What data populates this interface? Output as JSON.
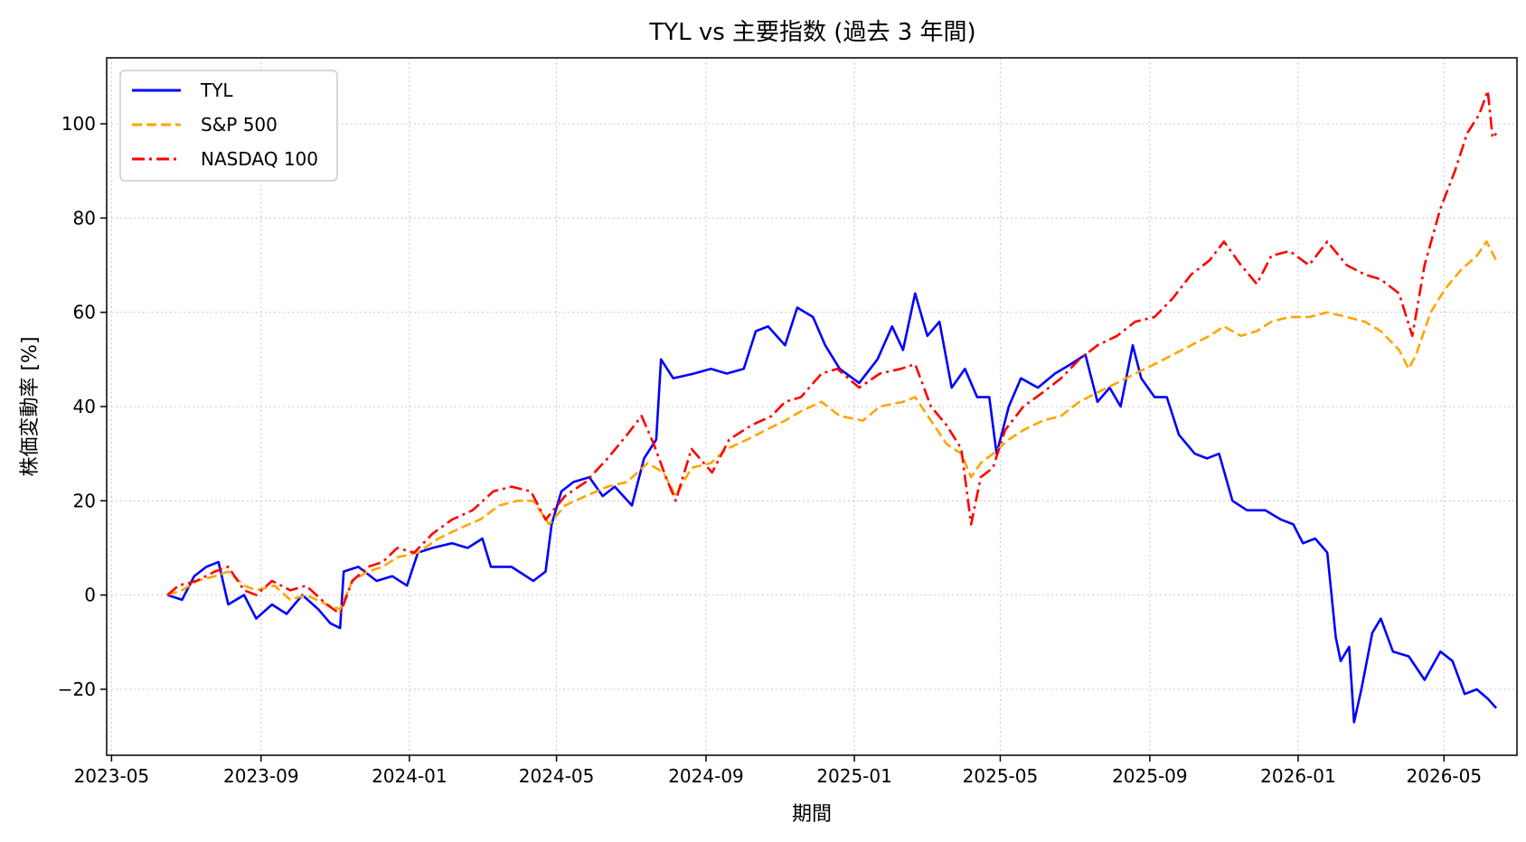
{
  "chart_data": {
    "type": "line",
    "title": "TYL vs 主要指数 (過去 3 年間)",
    "xlabel": "期間",
    "ylabel": "株価変動率 [%]",
    "xlim": [
      "2023-04-27",
      "2026-06-30"
    ],
    "ylim": [
      -34,
      114
    ],
    "x_ticks": [
      "2023-05",
      "2023-09",
      "2024-01",
      "2024-05",
      "2024-09",
      "2025-01",
      "2025-05",
      "2025-09",
      "2026-01",
      "2026-05"
    ],
    "y_ticks": [
      -20,
      0,
      20,
      40,
      60,
      80,
      100
    ],
    "grid": true,
    "legend_position": "top-left",
    "series": [
      {
        "name": "TYL",
        "color": "#0000ff",
        "style": "solid",
        "points": [
          [
            "2023-06-16",
            0
          ],
          [
            "2023-06-28",
            -1
          ],
          [
            "2023-07-08",
            4
          ],
          [
            "2023-07-18",
            6
          ],
          [
            "2023-07-28",
            7
          ],
          [
            "2023-08-05",
            -2
          ],
          [
            "2023-08-18",
            0
          ],
          [
            "2023-08-28",
            -5
          ],
          [
            "2023-09-10",
            -2
          ],
          [
            "2023-09-22",
            -4
          ],
          [
            "2023-10-05",
            0
          ],
          [
            "2023-10-18",
            -3
          ],
          [
            "2023-10-28",
            -6
          ],
          [
            "2023-11-05",
            -7
          ],
          [
            "2023-11-08",
            5
          ],
          [
            "2023-11-20",
            6
          ],
          [
            "2023-12-05",
            3
          ],
          [
            "2023-12-18",
            4
          ],
          [
            "2023-12-30",
            2
          ],
          [
            "2024-01-08",
            9
          ],
          [
            "2024-01-20",
            10
          ],
          [
            "2024-02-05",
            11
          ],
          [
            "2024-02-18",
            10
          ],
          [
            "2024-03-01",
            12
          ],
          [
            "2024-03-08",
            6
          ],
          [
            "2024-03-25",
            6
          ],
          [
            "2024-04-12",
            3
          ],
          [
            "2024-04-22",
            5
          ],
          [
            "2024-04-27",
            15
          ],
          [
            "2024-05-05",
            22
          ],
          [
            "2024-05-15",
            24
          ],
          [
            "2024-05-28",
            25
          ],
          [
            "2024-06-08",
            21
          ],
          [
            "2024-06-18",
            23
          ],
          [
            "2024-07-02",
            19
          ],
          [
            "2024-07-12",
            29
          ],
          [
            "2024-07-22",
            33
          ],
          [
            "2024-07-26",
            50
          ],
          [
            "2024-08-05",
            46
          ],
          [
            "2024-08-22",
            47
          ],
          [
            "2024-09-05",
            48
          ],
          [
            "2024-09-18",
            47
          ],
          [
            "2024-10-02",
            48
          ],
          [
            "2024-10-12",
            56
          ],
          [
            "2024-10-22",
            57
          ],
          [
            "2024-11-05",
            53
          ],
          [
            "2024-11-15",
            61
          ],
          [
            "2024-11-28",
            59
          ],
          [
            "2024-12-08",
            53
          ],
          [
            "2024-12-20",
            48
          ],
          [
            "2025-01-05",
            45
          ],
          [
            "2025-01-20",
            50
          ],
          [
            "2025-02-01",
            57
          ],
          [
            "2025-02-10",
            52
          ],
          [
            "2025-02-20",
            64
          ],
          [
            "2025-03-02",
            55
          ],
          [
            "2025-03-12",
            58
          ],
          [
            "2025-03-22",
            44
          ],
          [
            "2025-04-02",
            48
          ],
          [
            "2025-04-12",
            42
          ],
          [
            "2025-04-22",
            42
          ],
          [
            "2025-04-28",
            30
          ],
          [
            "2025-05-08",
            40
          ],
          [
            "2025-05-18",
            46
          ],
          [
            "2025-06-01",
            44
          ],
          [
            "2025-06-15",
            47
          ],
          [
            "2025-06-28",
            49
          ],
          [
            "2025-07-10",
            51
          ],
          [
            "2025-07-20",
            41
          ],
          [
            "2025-07-30",
            44
          ],
          [
            "2025-08-08",
            40
          ],
          [
            "2025-08-18",
            53
          ],
          [
            "2025-08-25",
            46
          ],
          [
            "2025-09-05",
            42
          ],
          [
            "2025-09-15",
            42
          ],
          [
            "2025-09-25",
            34
          ],
          [
            "2025-10-08",
            30
          ],
          [
            "2025-10-18",
            29
          ],
          [
            "2025-10-28",
            30
          ],
          [
            "2025-11-08",
            20
          ],
          [
            "2025-11-20",
            18
          ],
          [
            "2025-12-05",
            18
          ],
          [
            "2025-12-18",
            16
          ],
          [
            "2025-12-28",
            15
          ],
          [
            "2026-01-05",
            11
          ],
          [
            "2026-01-15",
            12
          ],
          [
            "2026-01-25",
            9
          ],
          [
            "2026-02-01",
            -9
          ],
          [
            "2026-02-05",
            -14
          ],
          [
            "2026-02-12",
            -11
          ],
          [
            "2026-02-16",
            -27
          ],
          [
            "2026-02-22",
            -20
          ],
          [
            "2026-03-03",
            -8
          ],
          [
            "2026-03-10",
            -5
          ],
          [
            "2026-03-20",
            -12
          ],
          [
            "2026-04-02",
            -13
          ],
          [
            "2026-04-15",
            -18
          ],
          [
            "2026-04-28",
            -12
          ],
          [
            "2026-05-08",
            -14
          ],
          [
            "2026-05-18",
            -21
          ],
          [
            "2026-05-28",
            -20
          ],
          [
            "2026-06-06",
            -22
          ],
          [
            "2026-06-13",
            -24
          ]
        ]
      },
      {
        "name": "S&P 500",
        "color": "#ffa500",
        "style": "dashed",
        "points": [
          [
            "2023-06-16",
            0
          ],
          [
            "2023-06-28",
            1
          ],
          [
            "2023-07-10",
            3
          ],
          [
            "2023-07-25",
            4
          ],
          [
            "2023-08-05",
            5
          ],
          [
            "2023-08-18",
            2
          ],
          [
            "2023-08-28",
            1
          ],
          [
            "2023-09-12",
            2
          ],
          [
            "2023-09-25",
            -1
          ],
          [
            "2023-10-08",
            0
          ],
          [
            "2023-10-25",
            -2
          ],
          [
            "2023-11-05",
            -3
          ],
          [
            "2023-11-15",
            3
          ],
          [
            "2023-11-28",
            5
          ],
          [
            "2023-12-10",
            6
          ],
          [
            "2023-12-22",
            8
          ],
          [
            "2024-01-08",
            9
          ],
          [
            "2024-01-25",
            12
          ],
          [
            "2024-02-10",
            14
          ],
          [
            "2024-02-28",
            16
          ],
          [
            "2024-03-15",
            19
          ],
          [
            "2024-03-30",
            20
          ],
          [
            "2024-04-12",
            20
          ],
          [
            "2024-04-25",
            15
          ],
          [
            "2024-05-08",
            19
          ],
          [
            "2024-05-25",
            21
          ],
          [
            "2024-06-12",
            23
          ],
          [
            "2024-06-28",
            24
          ],
          [
            "2024-07-15",
            28
          ],
          [
            "2024-07-28",
            26
          ],
          [
            "2024-08-07",
            21
          ],
          [
            "2024-08-20",
            27
          ],
          [
            "2024-09-05",
            28
          ],
          [
            "2024-09-18",
            31
          ],
          [
            "2024-10-05",
            33
          ],
          [
            "2024-10-20",
            35
          ],
          [
            "2024-11-05",
            37
          ],
          [
            "2024-11-18",
            39
          ],
          [
            "2024-12-05",
            41
          ],
          [
            "2024-12-20",
            38
          ],
          [
            "2025-01-08",
            37
          ],
          [
            "2025-01-22",
            40
          ],
          [
            "2025-02-10",
            41
          ],
          [
            "2025-02-20",
            42
          ],
          [
            "2025-03-05",
            37
          ],
          [
            "2025-03-18",
            32
          ],
          [
            "2025-03-30",
            30
          ],
          [
            "2025-04-07",
            25
          ],
          [
            "2025-04-15",
            28
          ],
          [
            "2025-04-25",
            30
          ],
          [
            "2025-05-08",
            33
          ],
          [
            "2025-05-20",
            35
          ],
          [
            "2025-06-05",
            37
          ],
          [
            "2025-06-20",
            38
          ],
          [
            "2025-07-05",
            41
          ],
          [
            "2025-07-20",
            43
          ],
          [
            "2025-08-05",
            45
          ],
          [
            "2025-08-20",
            47
          ],
          [
            "2025-09-05",
            49
          ],
          [
            "2025-09-20",
            51
          ],
          [
            "2025-10-05",
            53
          ],
          [
            "2025-10-20",
            55
          ],
          [
            "2025-11-01",
            57
          ],
          [
            "2025-11-15",
            55
          ],
          [
            "2025-11-28",
            56
          ],
          [
            "2025-12-10",
            58
          ],
          [
            "2025-12-25",
            59
          ],
          [
            "2026-01-10",
            59
          ],
          [
            "2026-01-25",
            60
          ],
          [
            "2026-02-10",
            59
          ],
          [
            "2026-02-25",
            58
          ],
          [
            "2026-03-10",
            56
          ],
          [
            "2026-03-25",
            52
          ],
          [
            "2026-04-02",
            48
          ],
          [
            "2026-04-08",
            51
          ],
          [
            "2026-04-20",
            60
          ],
          [
            "2026-05-02",
            65
          ],
          [
            "2026-05-15",
            69
          ],
          [
            "2026-05-28",
            72
          ],
          [
            "2026-06-05",
            75
          ],
          [
            "2026-06-13",
            71
          ]
        ]
      },
      {
        "name": "NASDAQ 100",
        "color": "#ff0000",
        "style": "dashdot",
        "points": [
          [
            "2023-06-16",
            0
          ],
          [
            "2023-06-25",
            2
          ],
          [
            "2023-07-10",
            3
          ],
          [
            "2023-07-25",
            5
          ],
          [
            "2023-08-05",
            6
          ],
          [
            "2023-08-18",
            1
          ],
          [
            "2023-08-28",
            0
          ],
          [
            "2023-09-10",
            3
          ],
          [
            "2023-09-25",
            1
          ],
          [
            "2023-10-08",
            2
          ],
          [
            "2023-10-25",
            -2
          ],
          [
            "2023-11-05",
            -4
          ],
          [
            "2023-11-15",
            3
          ],
          [
            "2023-11-28",
            6
          ],
          [
            "2023-12-10",
            7
          ],
          [
            "2023-12-22",
            10
          ],
          [
            "2024-01-05",
            9
          ],
          [
            "2024-01-20",
            13
          ],
          [
            "2024-02-05",
            16
          ],
          [
            "2024-02-22",
            18
          ],
          [
            "2024-03-10",
            22
          ],
          [
            "2024-03-25",
            23
          ],
          [
            "2024-04-10",
            22
          ],
          [
            "2024-04-22",
            16
          ],
          [
            "2024-05-08",
            21
          ],
          [
            "2024-05-25",
            24
          ],
          [
            "2024-06-12",
            29
          ],
          [
            "2024-06-28",
            34
          ],
          [
            "2024-07-10",
            38
          ],
          [
            "2024-07-20",
            32
          ],
          [
            "2024-07-30",
            25
          ],
          [
            "2024-08-07",
            20
          ],
          [
            "2024-08-20",
            31
          ],
          [
            "2024-09-06",
            26
          ],
          [
            "2024-09-20",
            33
          ],
          [
            "2024-10-08",
            36
          ],
          [
            "2024-10-25",
            38
          ],
          [
            "2024-11-05",
            41
          ],
          [
            "2024-11-18",
            42
          ],
          [
            "2024-12-05",
            47
          ],
          [
            "2024-12-18",
            48
          ],
          [
            "2025-01-05",
            44
          ],
          [
            "2025-01-22",
            47
          ],
          [
            "2025-02-08",
            48
          ],
          [
            "2025-02-20",
            49
          ],
          [
            "2025-03-05",
            40
          ],
          [
            "2025-03-18",
            36
          ],
          [
            "2025-03-30",
            31
          ],
          [
            "2025-04-07",
            15
          ],
          [
            "2025-04-15",
            25
          ],
          [
            "2025-04-25",
            27
          ],
          [
            "2025-05-05",
            35
          ],
          [
            "2025-05-20",
            40
          ],
          [
            "2025-06-05",
            43
          ],
          [
            "2025-06-20",
            46
          ],
          [
            "2025-07-05",
            50
          ],
          [
            "2025-07-20",
            53
          ],
          [
            "2025-08-05",
            55
          ],
          [
            "2025-08-20",
            58
          ],
          [
            "2025-09-05",
            59
          ],
          [
            "2025-09-20",
            63
          ],
          [
            "2025-10-05",
            68
          ],
          [
            "2025-10-20",
            71
          ],
          [
            "2025-11-01",
            75
          ],
          [
            "2025-11-15",
            70
          ],
          [
            "2025-11-28",
            66
          ],
          [
            "2025-12-10",
            72
          ],
          [
            "2025-12-25",
            73
          ],
          [
            "2026-01-10",
            70
          ],
          [
            "2026-01-25",
            75
          ],
          [
            "2026-02-10",
            70
          ],
          [
            "2026-02-25",
            68
          ],
          [
            "2026-03-10",
            67
          ],
          [
            "2026-03-25",
            64
          ],
          [
            "2026-04-05",
            55
          ],
          [
            "2026-04-15",
            70
          ],
          [
            "2026-04-28",
            82
          ],
          [
            "2026-05-10",
            90
          ],
          [
            "2026-05-20",
            98
          ],
          [
            "2026-05-30",
            102
          ],
          [
            "2026-06-06",
            107
          ],
          [
            "2026-06-10",
            97
          ],
          [
            "2026-06-13",
            98
          ]
        ]
      }
    ]
  }
}
